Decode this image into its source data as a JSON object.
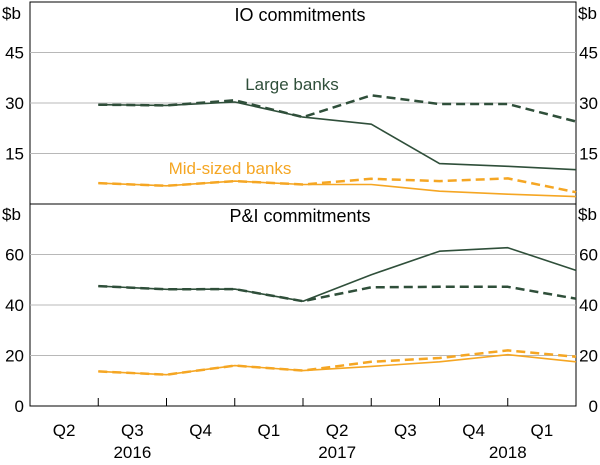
{
  "chart_data": {
    "type": "line",
    "x_ticks": [
      "Q2",
      "Q3",
      "Q4",
      "Q1",
      "Q2",
      "Q3",
      "Q4",
      "Q1"
    ],
    "year_labels": [
      {
        "label": "2016",
        "quarter_index": 1.5
      },
      {
        "label": "2017",
        "quarter_index": 4.5
      },
      {
        "label": "2018",
        "quarter_index": 7
      }
    ],
    "x_note": "quarter_index 0 = Q2 2016; data observed at quarter ends (0.5, 1.5, ... 8.0)",
    "colors": {
      "large": "#2f4f3a",
      "mid": "#f5a623",
      "axis": "#000000",
      "grid": "#b8b8b8"
    },
    "panels": [
      {
        "title": "IO commitments",
        "unit_left": "$b",
        "unit_right": "$b",
        "ylim": [
          0,
          60
        ],
        "yticks": [
          15,
          30,
          45
        ],
        "series": [
          {
            "name": "Large banks",
            "label": "Large banks",
            "color": "#2f4f3a",
            "dashed": false,
            "x": [
              1,
              2,
              3,
              4,
              5,
              6,
              7,
              8
            ],
            "values": [
              29.5,
              29.3,
              30.3,
              25.8,
              23.7,
              12.0,
              11.2,
              10.2
            ]
          },
          {
            "name": "Large banks (dashed)",
            "color": "#2f4f3a",
            "dashed": true,
            "x": [
              1,
              2,
              3,
              4,
              5,
              6,
              7,
              8
            ],
            "values": [
              29.5,
              29.3,
              30.8,
              25.8,
              32.3,
              29.7,
              29.7,
              24.5
            ]
          },
          {
            "name": "Mid-sized banks",
            "label": "Mid-sized banks",
            "color": "#f5a623",
            "dashed": false,
            "x": [
              1,
              2,
              3,
              4,
              5,
              6,
              7,
              8
            ],
            "values": [
              6.2,
              5.4,
              6.8,
              5.8,
              5.8,
              3.8,
              2.9,
              2.2
            ]
          },
          {
            "name": "Mid-sized banks (dashed)",
            "color": "#f5a623",
            "dashed": true,
            "x": [
              1,
              2,
              3,
              4,
              5,
              6,
              7,
              8
            ],
            "values": [
              6.2,
              5.4,
              6.8,
              5.8,
              7.5,
              6.8,
              7.6,
              3.5
            ]
          }
        ]
      },
      {
        "title": "P&I commitments",
        "unit_left": "$b",
        "unit_right": "$b",
        "ylim": [
          0,
          80
        ],
        "yticks": [
          0,
          20,
          40,
          60
        ],
        "series": [
          {
            "name": "Large banks",
            "color": "#2f4f3a",
            "dashed": false,
            "x": [
              1,
              2,
              3,
              4,
              5,
              6,
              7,
              8
            ],
            "values": [
              47.5,
              46.2,
              46.3,
              41.5,
              52.0,
              61.3,
              62.7,
              53.7
            ]
          },
          {
            "name": "Large banks (dashed)",
            "color": "#2f4f3a",
            "dashed": true,
            "x": [
              1,
              2,
              3,
              4,
              5,
              6,
              7,
              8
            ],
            "values": [
              47.5,
              46.2,
              46.3,
              41.5,
              47.0,
              47.2,
              47.2,
              42.5
            ]
          },
          {
            "name": "Mid-sized banks",
            "color": "#f5a623",
            "dashed": false,
            "x": [
              1,
              2,
              3,
              4,
              5,
              6,
              7,
              8
            ],
            "values": [
              13.7,
              12.4,
              16.0,
              14.0,
              15.7,
              17.5,
              20.3,
              17.5
            ]
          },
          {
            "name": "Mid-sized banks (dashed)",
            "color": "#f5a623",
            "dashed": true,
            "x": [
              1,
              2,
              3,
              4,
              5,
              6,
              7,
              8
            ],
            "values": [
              13.7,
              12.4,
              16.0,
              14.0,
              17.5,
              19.0,
              22.0,
              19.5
            ]
          }
        ]
      }
    ]
  }
}
